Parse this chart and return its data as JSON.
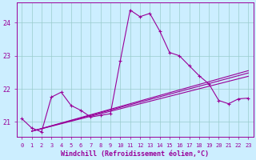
{
  "xlabel": "Windchill (Refroidissement éolien,°C)",
  "background_color": "#cceeff",
  "line_color": "#990099",
  "grid_color": "#99cccc",
  "xlim": [
    -0.5,
    23.5
  ],
  "ylim": [
    20.55,
    24.6
  ],
  "yticks": [
    21,
    22,
    23,
    24
  ],
  "xticks": [
    0,
    1,
    2,
    3,
    4,
    5,
    6,
    7,
    8,
    9,
    10,
    11,
    12,
    13,
    14,
    15,
    16,
    17,
    18,
    19,
    20,
    21,
    22,
    23
  ],
  "main_x": [
    0,
    1,
    2,
    3,
    4,
    5,
    6,
    7,
    8,
    9,
    10,
    11,
    12,
    13,
    14,
    15,
    16,
    17,
    18,
    19,
    20,
    21,
    22,
    23
  ],
  "main_y": [
    21.1,
    20.82,
    20.7,
    21.75,
    21.9,
    21.5,
    21.35,
    21.15,
    21.2,
    21.25,
    22.85,
    24.38,
    24.18,
    24.28,
    23.75,
    23.1,
    23.0,
    22.7,
    22.4,
    22.15,
    21.65,
    21.55,
    21.7,
    21.72
  ],
  "line2_x": [
    1,
    23
  ],
  "line2_y": [
    20.72,
    22.55
  ],
  "line3_x": [
    1,
    23
  ],
  "line3_y": [
    20.72,
    22.48
  ],
  "line4_x": [
    1,
    23
  ],
  "line4_y": [
    20.72,
    22.38
  ],
  "tick_fontsize": 5,
  "xlabel_fontsize": 6
}
